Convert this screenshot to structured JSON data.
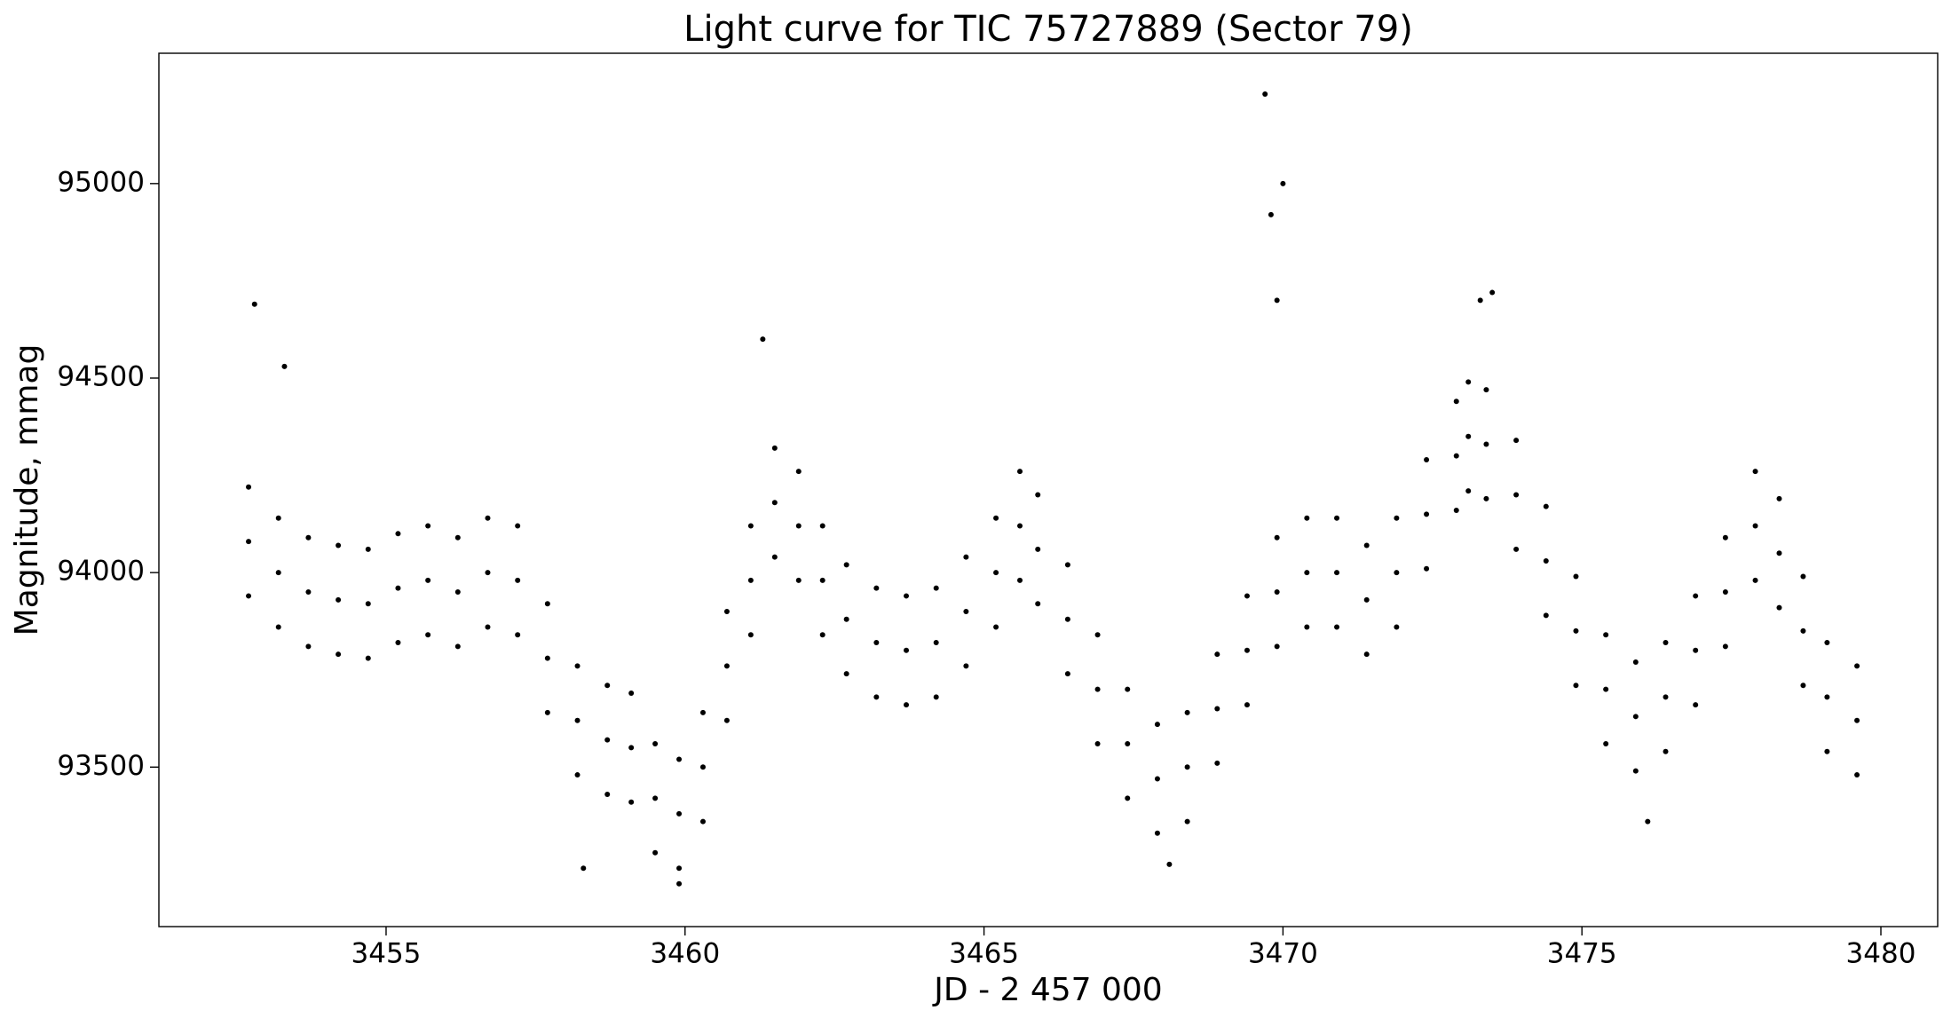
{
  "chart_data": {
    "type": "scatter",
    "title": "Light curve for TIC 75727889 (Sector 79)",
    "xlabel": "JD - 2 457 000",
    "ylabel": "Magnitude, mmag",
    "color": "#000000",
    "xlim": [
      3451.2,
      3480.95
    ],
    "ylim": [
      93090,
      95335
    ],
    "xticks": [
      3455,
      3460,
      3465,
      3470,
      3475,
      3480
    ],
    "yticks": [
      93500,
      94000,
      94500,
      95000
    ],
    "x": [
      3452.7,
      3452.7,
      3452.7,
      3453.2,
      3453.2,
      3453.2,
      3453.7,
      3453.7,
      3453.7,
      3454.2,
      3454.2,
      3454.2,
      3454.7,
      3454.7,
      3454.7,
      3455.2,
      3455.2,
      3455.2,
      3455.7,
      3455.7,
      3455.7,
      3456.2,
      3456.2,
      3456.2,
      3456.7,
      3456.7,
      3456.7,
      3457.2,
      3457.2,
      3457.2,
      3457.7,
      3457.7,
      3457.7,
      3458.2,
      3458.2,
      3458.2,
      3458.7,
      3458.7,
      3458.7,
      3459.1,
      3459.1,
      3459.1,
      3459.5,
      3459.5,
      3459.5,
      3459.9,
      3459.9,
      3459.9,
      3460.3,
      3460.3,
      3460.3,
      3460.7,
      3460.7,
      3460.7,
      3461.1,
      3461.1,
      3461.1,
      3461.5,
      3461.5,
      3461.5,
      3461.9,
      3461.9,
      3461.9,
      3462.3,
      3462.3,
      3462.3,
      3462.7,
      3462.7,
      3462.7,
      3463.2,
      3463.2,
      3463.2,
      3463.7,
      3463.7,
      3463.7,
      3464.2,
      3464.2,
      3464.2,
      3464.7,
      3464.7,
      3464.7,
      3465.2,
      3465.2,
      3465.2,
      3465.6,
      3465.6,
      3465.6,
      3465.9,
      3465.9,
      3465.9,
      3466.4,
      3466.4,
      3466.4,
      3466.9,
      3466.9,
      3466.9,
      3467.4,
      3467.4,
      3467.4,
      3467.9,
      3467.9,
      3467.9,
      3468.4,
      3468.4,
      3468.4,
      3468.9,
      3468.9,
      3468.9,
      3469.4,
      3469.4,
      3469.4,
      3469.9,
      3469.9,
      3469.9,
      3470.4,
      3470.4,
      3470.4,
      3470.9,
      3470.9,
      3470.9,
      3471.4,
      3471.4,
      3471.4,
      3471.9,
      3471.9,
      3471.9,
      3472.4,
      3472.4,
      3472.4,
      3472.9,
      3472.9,
      3472.9,
      3473.1,
      3473.1,
      3473.1,
      3473.4,
      3473.4,
      3473.4,
      3473.9,
      3473.9,
      3473.9,
      3474.4,
      3474.4,
      3474.4,
      3474.9,
      3474.9,
      3474.9,
      3475.4,
      3475.4,
      3475.4,
      3475.9,
      3475.9,
      3475.9,
      3476.4,
      3476.4,
      3476.4,
      3476.9,
      3476.9,
      3476.9,
      3477.4,
      3477.4,
      3477.4,
      3477.9,
      3477.9,
      3477.9,
      3478.3,
      3478.3,
      3478.3,
      3478.7,
      3478.7,
      3478.7,
      3479.1,
      3479.1,
      3479.1,
      3479.6,
      3479.6,
      3479.6,
      3452.8,
      3453.3,
      3461.3,
      3469.7,
      3469.8,
      3470.0,
      3469.9,
      3473.3,
      3473.5,
      3458.3,
      3459.9,
      3468.1,
      3476.1
    ],
    "y": [
      94080,
      94220,
      93940,
      94000,
      94140,
      93860,
      93950,
      94090,
      93810,
      93930,
      94070,
      93790,
      93920,
      94060,
      93780,
      93960,
      94100,
      93820,
      93980,
      94120,
      93840,
      93950,
      94090,
      93810,
      94000,
      94140,
      93860,
      93980,
      94120,
      93840,
      93780,
      93920,
      93640,
      93620,
      93760,
      93480,
      93570,
      93710,
      93430,
      93550,
      93690,
      93410,
      93420,
      93560,
      93280,
      93380,
      93520,
      93240,
      93500,
      93640,
      93360,
      93760,
      93900,
      93620,
      93980,
      94120,
      93840,
      94180,
      94320,
      94040,
      94120,
      94260,
      93980,
      93980,
      94120,
      93840,
      93880,
      94020,
      93740,
      93820,
      93960,
      93680,
      93800,
      93940,
      93660,
      93820,
      93960,
      93680,
      93900,
      94040,
      93760,
      94000,
      94140,
      93860,
      94120,
      94260,
      93980,
      94060,
      94200,
      93920,
      93880,
      94020,
      93740,
      93700,
      93840,
      93560,
      93560,
      93700,
      93420,
      93470,
      93610,
      93330,
      93500,
      93640,
      93360,
      93650,
      93790,
      93510,
      93800,
      93940,
      93660,
      93950,
      94090,
      93810,
      94000,
      94140,
      93860,
      94000,
      94140,
      93860,
      93930,
      94070,
      93790,
      94000,
      94140,
      93860,
      94150,
      94290,
      94010,
      94300,
      94440,
      94160,
      94350,
      94490,
      94210,
      94330,
      94470,
      94190,
      94200,
      94340,
      94060,
      94030,
      94170,
      93890,
      93850,
      93990,
      93710,
      93700,
      93840,
      93560,
      93630,
      93770,
      93490,
      93680,
      93820,
      93540,
      93800,
      93940,
      93660,
      93950,
      94090,
      93810,
      94120,
      94260,
      93980,
      94050,
      94190,
      93910,
      93850,
      93990,
      93710,
      93680,
      93820,
      93540,
      93620,
      93760,
      93480,
      94690,
      94530,
      94600,
      95230,
      94920,
      95000,
      94700,
      94700,
      94720,
      93240,
      93200,
      93250,
      93360
    ]
  }
}
